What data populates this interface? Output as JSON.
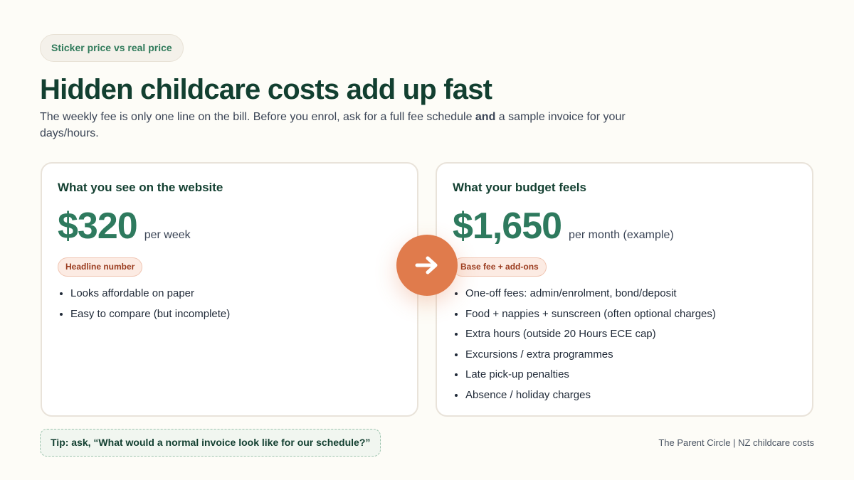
{
  "badge": "Sticker price vs real price",
  "title": "Hidden childcare costs add up fast",
  "subtitle": {
    "before": "The weekly fee is only one line on the bill. Before you enrol, ask for a full fee schedule ",
    "bold": "and",
    "after": " a sample invoice for your days/hours."
  },
  "left_card": {
    "heading": "What you see on the website",
    "price": "$320",
    "unit": "per week",
    "tag": "Headline number",
    "items": [
      "Looks affordable on paper",
      "Easy to compare (but incomplete)"
    ]
  },
  "right_card": {
    "heading": "What your budget feels",
    "price": "$1,650",
    "unit": "per month (example)",
    "tag": "Base fee + add-ons",
    "items": [
      "One-off fees: admin/enrolment, bond/deposit",
      "Food + nappies + sunscreen (often optional charges)",
      "Extra hours (outside 20 Hours ECE cap)",
      "Excursions / extra programmes",
      "Late pick-up penalties",
      "Absence / holiday charges"
    ]
  },
  "arrow_icon": "arrow-right-icon",
  "tip": "Tip: ask, “What would a normal invoice look like for our schedule?”",
  "footer": "The Parent Circle | NZ childcare costs",
  "colors": {
    "accent": "#2e7a5e",
    "heading": "#123f30",
    "orange": "#e07b4c"
  }
}
